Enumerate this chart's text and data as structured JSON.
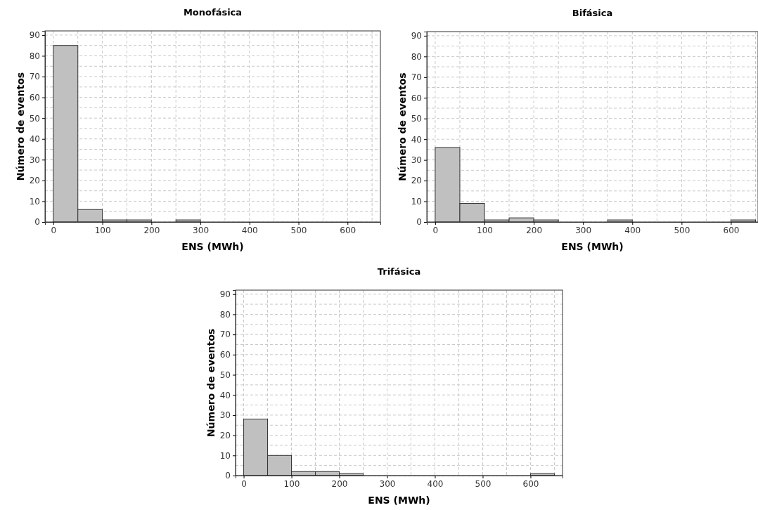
{
  "chart_data": [
    {
      "type": "histogram",
      "title": "Monofásica",
      "xlabel": "ENS (MWh)",
      "ylabel": "Número de eventos",
      "color": "#c0c0c0",
      "grid": true,
      "bins": [
        0,
        50,
        100,
        150,
        200,
        250,
        300,
        350,
        400,
        450,
        500,
        550,
        600,
        650
      ],
      "values": [
        85,
        6,
        1,
        1,
        0,
        1,
        0,
        0,
        0,
        0,
        0,
        0,
        0
      ],
      "xlim": [
        -17,
        667
      ],
      "ylim": [
        0,
        92
      ],
      "xticks": [
        0,
        {
          "value": 50,
          "label": null
        },
        100,
        {
          "value": 150,
          "label": null
        },
        200,
        {
          "value": 250,
          "label": null
        },
        300,
        {
          "value": 350,
          "label": null
        },
        400,
        {
          "value": 450,
          "label": null
        },
        500,
        {
          "value": 550,
          "label": null
        },
        600,
        {
          "value": 650,
          "label": null
        }
      ],
      "yticks": [
        0,
        {
          "value": 5,
          "label": null
        },
        10,
        {
          "value": 15,
          "label": null
        },
        20,
        {
          "value": 25,
          "label": null
        },
        30,
        {
          "value": 35,
          "label": null
        },
        40,
        {
          "value": 45,
          "label": null
        },
        50,
        {
          "value": 55,
          "label": null
        },
        60,
        {
          "value": 65,
          "label": null
        },
        70,
        {
          "value": 75,
          "label": null
        },
        80,
        {
          "value": 85,
          "label": null
        },
        90
      ]
    },
    {
      "type": "histogram",
      "title": "Bifásica",
      "xlabel": "ENS (MWh)",
      "ylabel": "Número de eventos",
      "color": "#c0c0c0",
      "grid": true,
      "bins": [
        0,
        50,
        100,
        150,
        200,
        250,
        300,
        350,
        400,
        450,
        500,
        550,
        600,
        650
      ],
      "values": [
        36,
        9,
        1,
        2,
        1,
        0,
        0,
        1,
        0,
        0,
        0,
        0,
        1
      ],
      "xlim": [
        -17,
        655
      ],
      "ylim": [
        0,
        92
      ],
      "xticks": [
        0,
        {
          "value": 50,
          "label": null
        },
        100,
        {
          "value": 150,
          "label": null
        },
        200,
        {
          "value": 250,
          "label": null
        },
        300,
        {
          "value": 350,
          "label": null
        },
        400,
        {
          "value": 450,
          "label": null
        },
        500,
        {
          "value": 550,
          "label": null
        },
        600,
        {
          "value": 650,
          "label": null
        }
      ],
      "yticks": [
        0,
        {
          "value": 5,
          "label": null
        },
        10,
        {
          "value": 15,
          "label": null
        },
        20,
        {
          "value": 25,
          "label": null
        },
        30,
        {
          "value": 35,
          "label": null
        },
        40,
        {
          "value": 45,
          "label": null
        },
        50,
        {
          "value": 55,
          "label": null
        },
        60,
        {
          "value": 65,
          "label": null
        },
        70,
        {
          "value": 75,
          "label": null
        },
        80,
        {
          "value": 85,
          "label": null
        },
        90
      ]
    },
    {
      "type": "histogram",
      "title": "Trifásica",
      "xlabel": "ENS (MWh)",
      "ylabel": "Número de eventos",
      "color": "#c0c0c0",
      "grid": true,
      "bins": [
        0,
        50,
        100,
        150,
        200,
        250,
        300,
        350,
        400,
        450,
        500,
        550,
        600,
        650
      ],
      "values": [
        28,
        10,
        2,
        2,
        1,
        0,
        0,
        0,
        0,
        0,
        0,
        0,
        1
      ],
      "xlim": [
        -17,
        667
      ],
      "ylim": [
        0,
        92
      ],
      "xticks": [
        0,
        {
          "value": 50,
          "label": null
        },
        100,
        {
          "value": 150,
          "label": null
        },
        200,
        {
          "value": 250,
          "label": null
        },
        300,
        {
          "value": 350,
          "label": null
        },
        400,
        {
          "value": 450,
          "label": null
        },
        500,
        {
          "value": 550,
          "label": null
        },
        600,
        {
          "value": 650,
          "label": null
        }
      ],
      "yticks": [
        0,
        {
          "value": 5,
          "label": null
        },
        10,
        {
          "value": 15,
          "label": null
        },
        20,
        {
          "value": 25,
          "label": null
        },
        30,
        {
          "value": 35,
          "label": null
        },
        40,
        {
          "value": 45,
          "label": null
        },
        50,
        {
          "value": 55,
          "label": null
        },
        60,
        {
          "value": 65,
          "label": null
        },
        70,
        {
          "value": 75,
          "label": null
        },
        80,
        {
          "value": 85,
          "label": null
        },
        90
      ]
    }
  ]
}
